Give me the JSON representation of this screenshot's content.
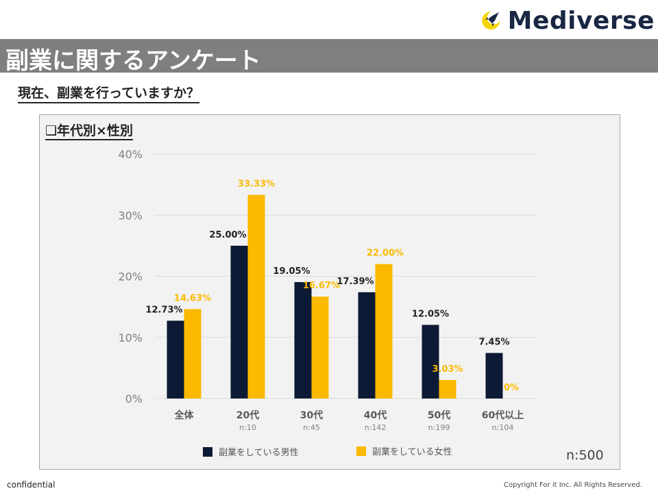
{
  "brand": {
    "name": "Mediverse"
  },
  "header": {
    "title": "副業に関するアンケート"
  },
  "question": "現在、副業を行っていますか？",
  "panel": {
    "title": "❑年代別×性別",
    "n_total": "n:500"
  },
  "colors": {
    "male": "#0c1a35",
    "female": "#fbb900",
    "grid": "#d9d9d9",
    "axis_text": "#7f7f7f"
  },
  "chart_data": {
    "type": "bar",
    "title": "年代別×性別",
    "categories": [
      "全体",
      "20代",
      "30代",
      "40代",
      "50代",
      "60代以上"
    ],
    "category_n": [
      "",
      "n:10",
      "n:45",
      "n:142",
      "n:199",
      "n:104"
    ],
    "series": [
      {
        "name": "副業をしている男性",
        "values": [
          12.73,
          25.0,
          19.05,
          17.39,
          12.05,
          7.45
        ],
        "labels": [
          "12.73%",
          "25.00%",
          "19.05%",
          "17.39%",
          "12.05%",
          "7.45%"
        ]
      },
      {
        "name": "副業をしている女性",
        "values": [
          14.63,
          33.33,
          16.67,
          22.0,
          3.03,
          0
        ],
        "labels": [
          "14.63%",
          "33.33%",
          "16.67%",
          "22.00%",
          "3.03%",
          "0%"
        ]
      }
    ],
    "ylim": [
      0,
      40
    ],
    "yticks": [
      "0%",
      "10%",
      "20%",
      "30%",
      "40%"
    ],
    "grid": true,
    "legend": "bottom"
  },
  "footer": {
    "left": "confidential",
    "right": "Copyright For it Inc. All Rights Reserved."
  }
}
